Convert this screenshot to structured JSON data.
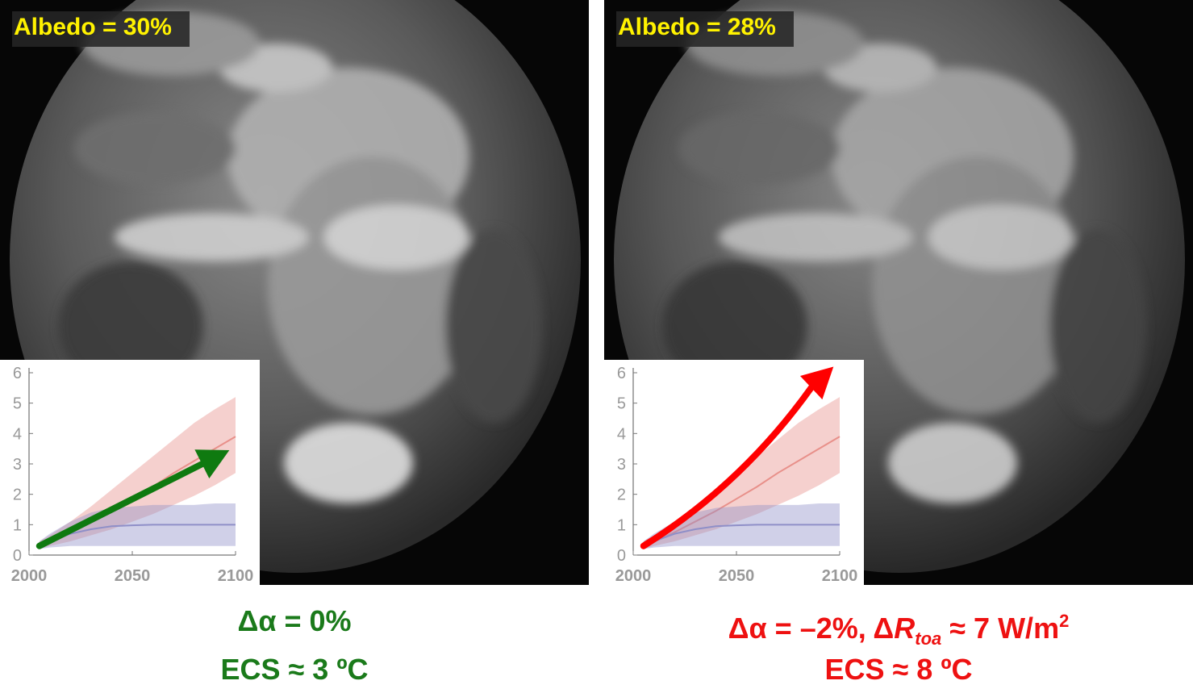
{
  "panels": [
    {
      "albedo_label": "Albedo = 30%",
      "caption_line1": "Δα = 0%",
      "caption_line2": "ECS ≈ 3 ºC",
      "arrow_color": "#0f7a10"
    },
    {
      "albedo_label": "Albedo = 28%",
      "caption_line1_pre": "Δα = –2%,  Δ",
      "caption_line1_R": "R",
      "caption_line1_sub": "toa",
      "caption_line1_post": " ≈ 7 W/m",
      "caption_line1_sup": "2",
      "caption_line2": "ECS  ≈  8 ºC",
      "arrow_color": "#ff0000"
    }
  ],
  "chart_data": [
    {
      "type": "line",
      "x": [
        2005,
        2010,
        2020,
        2030,
        2040,
        2050,
        2060,
        2070,
        2080,
        2090,
        2100
      ],
      "xlim": [
        2000,
        2100
      ],
      "ylim": [
        0,
        6
      ],
      "x_ticks": [
        "2000",
        "2050",
        "2100"
      ],
      "y_ticks": [
        "0",
        "1",
        "2",
        "3",
        "4",
        "5",
        "6"
      ],
      "series": [
        {
          "values": [
            0.3,
            0.45,
            0.75,
            1.1,
            1.45,
            1.85,
            2.25,
            2.7,
            3.1,
            3.5,
            3.9
          ],
          "lower": [
            0.2,
            0.3,
            0.45,
            0.65,
            0.85,
            1.1,
            1.35,
            1.65,
            1.95,
            2.3,
            2.7
          ],
          "upper": [
            0.45,
            0.65,
            1.1,
            1.6,
            2.15,
            2.7,
            3.25,
            3.8,
            4.35,
            4.8,
            5.2
          ],
          "color": "#e8908a"
        },
        {
          "values": [
            0.3,
            0.45,
            0.7,
            0.85,
            0.95,
            0.98,
            1.0,
            1.0,
            1.0,
            1.0,
            1.0
          ],
          "lower": [
            0.2,
            0.25,
            0.3,
            0.3,
            0.3,
            0.3,
            0.3,
            0.3,
            0.3,
            0.3,
            0.3
          ],
          "upper": [
            0.45,
            0.7,
            1.1,
            1.4,
            1.55,
            1.6,
            1.65,
            1.65,
            1.65,
            1.7,
            1.7
          ],
          "color": "#8f8fc8"
        }
      ],
      "trend_arrow": {
        "x": [
          2005,
          2097
        ],
        "y": [
          0.3,
          3.45
        ],
        "color": "#0f7a10"
      }
    },
    {
      "type": "line",
      "x": [
        2005,
        2010,
        2020,
        2030,
        2040,
        2050,
        2060,
        2070,
        2080,
        2090,
        2100
      ],
      "xlim": [
        2000,
        2100
      ],
      "ylim": [
        0,
        6
      ],
      "x_ticks": [
        "2000",
        "2050",
        "2100"
      ],
      "y_ticks": [
        "0",
        "1",
        "2",
        "3",
        "4",
        "5",
        "6"
      ],
      "series": [
        {
          "values": [
            0.3,
            0.45,
            0.75,
            1.1,
            1.45,
            1.85,
            2.25,
            2.7,
            3.1,
            3.5,
            3.9
          ],
          "lower": [
            0.2,
            0.3,
            0.45,
            0.65,
            0.85,
            1.1,
            1.35,
            1.65,
            1.95,
            2.3,
            2.7
          ],
          "upper": [
            0.45,
            0.65,
            1.1,
            1.6,
            2.15,
            2.7,
            3.25,
            3.8,
            4.35,
            4.8,
            5.2
          ],
          "color": "#e8908a"
        },
        {
          "values": [
            0.3,
            0.45,
            0.7,
            0.85,
            0.95,
            0.98,
            1.0,
            1.0,
            1.0,
            1.0,
            1.0
          ],
          "lower": [
            0.2,
            0.25,
            0.3,
            0.3,
            0.3,
            0.3,
            0.3,
            0.3,
            0.3,
            0.3,
            0.3
          ],
          "upper": [
            0.45,
            0.7,
            1.1,
            1.4,
            1.55,
            1.6,
            1.65,
            1.65,
            1.65,
            1.7,
            1.7
          ],
          "color": "#8f8fc8"
        }
      ],
      "trend_arrow": {
        "x": [
          2005,
          2097
        ],
        "y": [
          0.3,
          6.2
        ],
        "color": "#ff0000"
      }
    }
  ]
}
